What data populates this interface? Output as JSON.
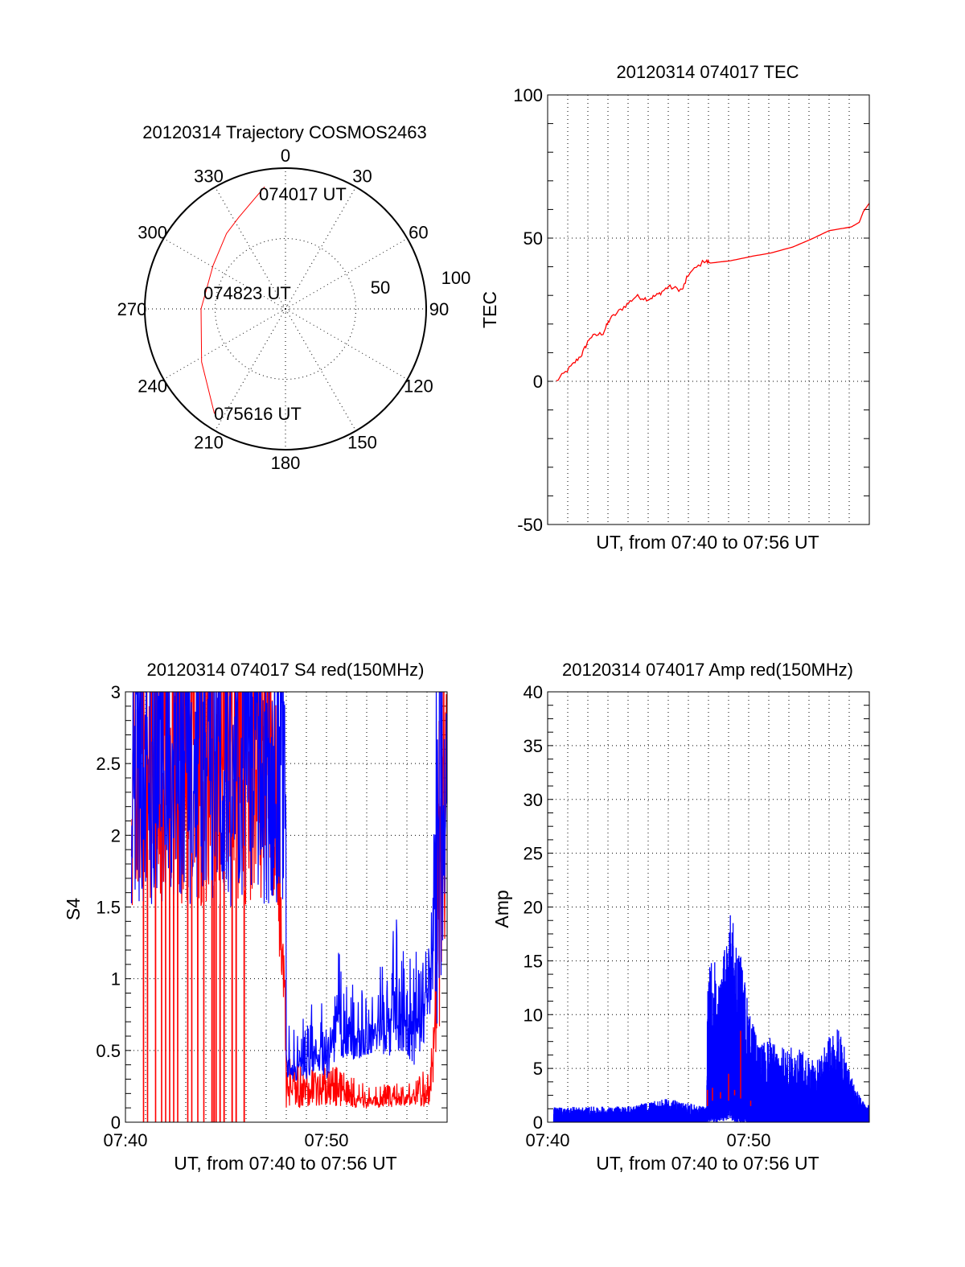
{
  "colors": {
    "red": "#ff0000",
    "blue": "#0000ff",
    "axis": "#000000"
  },
  "chart_data": [
    {
      "type": "polar",
      "title": "20120314 Trajectory COSMOS2463",
      "azimuth_labels": [
        "0",
        "30",
        "60",
        "90",
        "120",
        "150",
        "180",
        "210",
        "240",
        "270",
        "300",
        "330"
      ],
      "radial_labels": [
        "100",
        "50"
      ],
      "radial_range": [
        0,
        100
      ],
      "series": [
        {
          "name": "trajectory",
          "color": "#ff0000",
          "points": [
            {
              "az": 350.3,
              "r": 88
            },
            {
              "az": 332.9,
              "r": 73
            },
            {
              "az": 322,
              "r": 68
            },
            {
              "az": 301,
              "r": 60
            },
            {
              "az": 270,
              "r": 60
            },
            {
              "az": 237.7,
              "r": 70.5
            },
            {
              "az": 214.2,
              "r": 89.9
            }
          ]
        }
      ],
      "annotations": [
        "074017 UT",
        "074823 UT",
        "075616 UT"
      ]
    },
    {
      "type": "line",
      "title": "20120314 074017 TEC",
      "xlabel": "UT, from 07:40 to 07:56 UT",
      "ylabel": "TEC",
      "xlim": [
        0,
        16
      ],
      "x_units": "minutes after 07:40",
      "ylim": [
        -50,
        100
      ],
      "yticks": [
        "100",
        "50",
        "0",
        "-50"
      ],
      "ytick_values": [
        100,
        50,
        0,
        -50
      ],
      "grid": true,
      "series": [
        {
          "name": "TEC",
          "color": "#ff0000",
          "x": [
            0.43,
            1.16,
            1.7,
            2.1,
            2.76,
            3.1,
            3.8,
            4.4,
            5.0,
            5.5,
            6.0,
            6.7,
            7.0,
            7.8,
            8.1,
            9.1,
            10.2,
            11.1,
            12.2,
            13.1,
            14.0,
            15.1,
            15.5,
            15.7,
            16.0
          ],
          "y": [
            0,
            5.1,
            9.4,
            15.3,
            16.9,
            21.7,
            26,
            29.7,
            28.7,
            30.3,
            33,
            31.9,
            37.3,
            42.1,
            41.3,
            42.1,
            43.7,
            44.8,
            46.9,
            49.6,
            52.6,
            53.9,
            55.5,
            59.2,
            62.2
          ]
        }
      ]
    },
    {
      "type": "line",
      "title": "20120314 074017 S4 red(150MHz)",
      "xlabel": "UT, from 07:40 to 07:56 UT",
      "ylabel": "S4",
      "xlim": [
        0,
        16
      ],
      "x_units": "minutes after 07:40",
      "xticks": [
        "07:40",
        "07:50"
      ],
      "xtick_values": [
        0,
        10
      ],
      "ylim": [
        0,
        3
      ],
      "yticks": [
        "3",
        "2.5",
        "2",
        "1.5",
        "1",
        "0.5",
        "0"
      ],
      "ytick_values": [
        3,
        2.5,
        2,
        1.5,
        1,
        0.5,
        0
      ],
      "grid": true,
      "series": [
        {
          "name": "S4 red (envelope min/max)",
          "color": "#ff0000",
          "t": [
            0.3,
            7.5,
            7.7,
            7.9,
            8.0,
            9.0,
            10.0,
            11.0,
            12.0,
            13.0,
            14.0,
            15.0,
            15.3,
            15.6,
            16.0
          ],
          "lo": [
            1.5,
            1.5,
            1.0,
            0.8,
            0.1,
            0.1,
            0.12,
            0.1,
            0.1,
            0.1,
            0.12,
            0.1,
            0.2,
            0.3,
            1.5
          ],
          "hi": [
            3.0,
            3.0,
            1.6,
            1.3,
            0.3,
            0.3,
            0.3,
            0.22,
            0.18,
            0.18,
            0.18,
            0.25,
            0.5,
            2.5,
            3.0
          ],
          "dropouts_to_zero": [
            0.9,
            1.1,
            1.5,
            1.8,
            2.0,
            2.2,
            2.4,
            2.6,
            3.1,
            3.3,
            3.6,
            3.9,
            4.3,
            4.4,
            4.5,
            4.7,
            4.9,
            5.3,
            5.5,
            5.9
          ]
        },
        {
          "name": "S4 blue (envelope min/max)",
          "color": "#0000ff",
          "t": [
            0.3,
            7.96,
            8.0,
            8.5,
            9.0,
            9.5,
            10.0,
            10.5,
            11.0,
            11.5,
            12.0,
            12.5,
            13.0,
            13.5,
            14.0,
            14.5,
            15.0,
            15.3,
            15.6,
            16.0
          ],
          "lo": [
            1.5,
            1.5,
            0.3,
            0.28,
            0.3,
            0.35,
            0.3,
            0.45,
            0.45,
            0.4,
            0.45,
            0.5,
            0.45,
            0.5,
            0.4,
            0.4,
            0.5,
            0.9,
            0.5,
            2.0
          ],
          "hi": [
            3.0,
            3.0,
            0.45,
            0.45,
            0.5,
            0.6,
            0.55,
            0.85,
            0.65,
            0.65,
            0.7,
            0.75,
            0.75,
            1.05,
            0.75,
            0.8,
            0.9,
            1.8,
            3.0,
            3.0
          ]
        }
      ]
    },
    {
      "type": "line",
      "title": "20120314 074017 Amp red(150MHz)",
      "xlabel": "UT, from 07:40 to 07:56 UT",
      "ylabel": "Amp",
      "xlim": [
        0,
        16
      ],
      "x_units": "minutes after 07:40",
      "xticks": [
        "07:40",
        "07:50"
      ],
      "xtick_values": [
        0,
        10
      ],
      "ylim": [
        0,
        40
      ],
      "yticks": [
        "40",
        "35",
        "30",
        "25",
        "20",
        "15",
        "10",
        "5",
        "0"
      ],
      "ytick_values": [
        40,
        35,
        30,
        25,
        20,
        15,
        10,
        5,
        0
      ],
      "grid": true,
      "series": [
        {
          "name": "Amp blue (envelope min/max)",
          "color": "#0000ff",
          "t": [
            0.3,
            4.0,
            6.0,
            7.9,
            7.95,
            8.3,
            8.6,
            9.0,
            9.5,
            10.0,
            10.5,
            11.0,
            11.5,
            12.0,
            12.5,
            13.0,
            13.5,
            14.0,
            14.5,
            15.0,
            15.5,
            16.0
          ],
          "lo": [
            0,
            0,
            0,
            0,
            1,
            1,
            1,
            2,
            1,
            0,
            0,
            0,
            0,
            0,
            0,
            0,
            0,
            0,
            0,
            0,
            0,
            0
          ],
          "hi": [
            1.4,
            1.5,
            2.2,
            1.4,
            15,
            15,
            13,
            20,
            17,
            11,
            7,
            8,
            7,
            7,
            7,
            6,
            6,
            8,
            9,
            5,
            2.5,
            1.5
          ]
        },
        {
          "name": "Amp red (spikes)",
          "color": "#ff0000",
          "t": [
            7.95,
            8.2,
            8.6,
            9.0,
            9.3,
            9.6,
            10.1
          ],
          "lo": [
            1.5,
            2.0,
            2.2,
            2.0,
            2.5,
            2.2,
            1.5
          ],
          "hi": [
            3.0,
            3.2,
            2.8,
            4.5,
            3.0,
            8.5,
            2.0
          ]
        }
      ]
    }
  ]
}
